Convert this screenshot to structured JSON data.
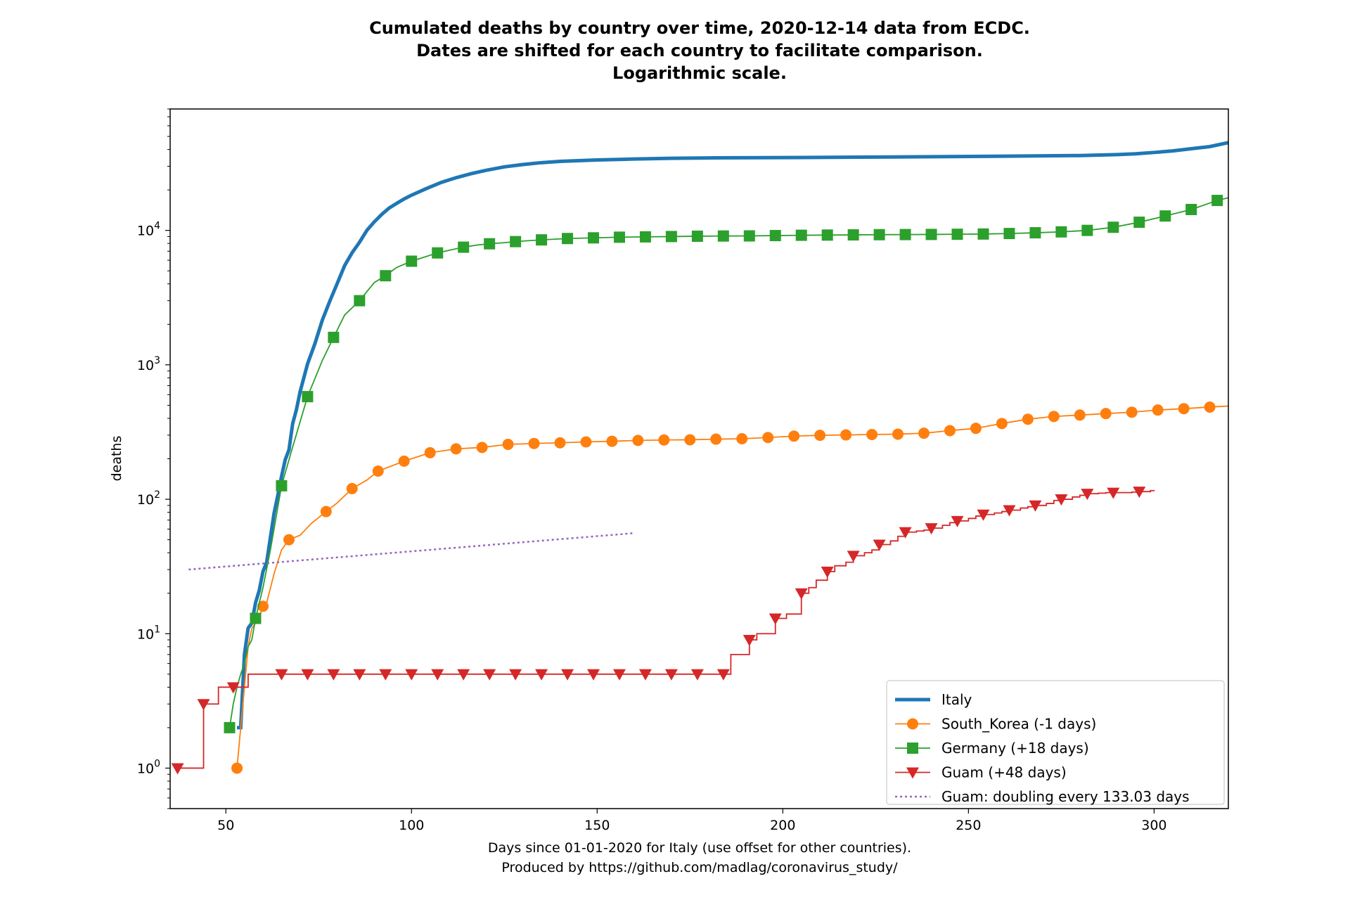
{
  "chart_data": {
    "type": "line",
    "title": [
      "Cumulated deaths by country over time, 2020-12-14 data from ECDC.",
      "Dates are shifted for each country to facilitate comparison.",
      "Logarithmic scale."
    ],
    "xlabel": [
      "Days since 01-01-2020 for Italy (use offset for other countries).",
      "Produced by https://github.com/madlag/coronavirus_study/"
    ],
    "ylabel": "deaths",
    "y_scale": "log",
    "xlim": [
      35,
      320
    ],
    "ylim": [
      0.5,
      80000
    ],
    "x_ticks": [
      50,
      100,
      150,
      200,
      250,
      300
    ],
    "y_ticks": [
      1,
      10,
      100,
      1000,
      10000
    ],
    "y_tick_labels": [
      {
        "base": "10",
        "exp": "0"
      },
      {
        "base": "10",
        "exp": "1"
      },
      {
        "base": "10",
        "exp": "2"
      },
      {
        "base": "10",
        "exp": "3"
      },
      {
        "base": "10",
        "exp": "4"
      }
    ],
    "legend_position": "lower-right",
    "series": [
      {
        "name": "Italy",
        "color": "#1f77b4",
        "marker": "none",
        "style": "solid-thick",
        "x": [
          53,
          54,
          55,
          56,
          57,
          58,
          59,
          60,
          61,
          62,
          63,
          64,
          65,
          66,
          67,
          68,
          69,
          70,
          72,
          74,
          76,
          78,
          80,
          82,
          84,
          86,
          88,
          90,
          92,
          94,
          96,
          98,
          100,
          104,
          108,
          112,
          116,
          120,
          125,
          130,
          135,
          140,
          150,
          160,
          170,
          180,
          200,
          220,
          240,
          260,
          280,
          290,
          295,
          300,
          305,
          310,
          315,
          320
        ],
        "y": [
          2,
          2,
          7,
          11,
          12,
          17,
          21,
          29,
          34,
          52,
          79,
          107,
          148,
          197,
          233,
          366,
          463,
          631,
          1016,
          1441,
          2158,
          2978,
          4032,
          5476,
          6820,
          8165,
          10023,
          11591,
          13155,
          14681,
          15887,
          17127,
          18279,
          20465,
          22745,
          24648,
          26384,
          27967,
          29684,
          30911,
          31908,
          32616,
          33415,
          33964,
          34405,
          34610,
          34788,
          35042,
          35318,
          35633,
          36050,
          36600,
          37100,
          38000,
          39000,
          40500,
          42000,
          45000
        ]
      },
      {
        "name": "South_Korea (-1 days)",
        "color": "#ff7f0e",
        "marker": "circle",
        "style": "solid",
        "x": [
          53,
          54,
          55,
          56,
          57,
          58,
          59,
          60,
          61,
          63,
          65,
          67,
          70,
          73,
          77,
          80,
          84,
          88,
          91,
          98,
          105,
          112,
          119,
          126,
          133,
          140,
          147,
          154,
          161,
          168,
          175,
          182,
          189,
          196,
          203,
          210,
          217,
          224,
          231,
          238,
          245,
          252,
          259,
          266,
          273,
          280,
          287,
          294,
          301,
          308,
          315,
          320
        ],
        "y": [
          1,
          2,
          4,
          8,
          11,
          12,
          13,
          16,
          17,
          28,
          42,
          50,
          54,
          66,
          81,
          94,
          120,
          139,
          162,
          192,
          222,
          237,
          243,
          256,
          260,
          263,
          267,
          270,
          274,
          276,
          277,
          280,
          282,
          288,
          295,
          299,
          301,
          303,
          305,
          310,
          324,
          337,
          366,
          394,
          413,
          423,
          434,
          444,
          461,
          472,
          485,
          494
        ]
      },
      {
        "name": "Germany (+18 days)",
        "color": "#2ca02c",
        "marker": "square",
        "style": "solid",
        "x": [
          51,
          52,
          53,
          54,
          55,
          56,
          57,
          58,
          60,
          62,
          65,
          68,
          72,
          76,
          79,
          82,
          86,
          90,
          93,
          96,
          100,
          104,
          107,
          110,
          114,
          118,
          121,
          125,
          128,
          132,
          135,
          142,
          149,
          156,
          163,
          170,
          177,
          184,
          191,
          198,
          205,
          212,
          219,
          226,
          233,
          240,
          247,
          254,
          261,
          268,
          275,
          282,
          289,
          296,
          303,
          310,
          317,
          320
        ],
        "y": [
          2,
          3,
          4,
          5,
          6,
          8,
          9,
          13,
          22,
          42,
          126,
          245,
          580,
          1080,
          1600,
          2350,
          3000,
          4100,
          4600,
          5300,
          5900,
          6400,
          6800,
          7100,
          7500,
          7800,
          7950,
          8100,
          8250,
          8400,
          8500,
          8700,
          8800,
          8900,
          8950,
          9000,
          9050,
          9080,
          9100,
          9150,
          9200,
          9230,
          9260,
          9290,
          9310,
          9330,
          9360,
          9400,
          9480,
          9600,
          9750,
          10000,
          10550,
          11500,
          12800,
          14300,
          16700,
          17500
        ]
      },
      {
        "name": "Guam (+48 days)",
        "color": "#d62728",
        "marker": "triangle-down",
        "style": "steps",
        "x": [
          37,
          38,
          40,
          42,
          43,
          44,
          46,
          48,
          50,
          52,
          54,
          56,
          58,
          65,
          72,
          79,
          86,
          93,
          100,
          107,
          114,
          121,
          128,
          135,
          142,
          149,
          156,
          163,
          170,
          177,
          184,
          186,
          188,
          191,
          193,
          196,
          198,
          201,
          203,
          205,
          207,
          209,
          212,
          214,
          217,
          219,
          222,
          224,
          226,
          229,
          231,
          233,
          236,
          238,
          240,
          243,
          245,
          247,
          250,
          252,
          254,
          257,
          259,
          261,
          264,
          266,
          268,
          271,
          273,
          275,
          278,
          280,
          282,
          285,
          287,
          289,
          292,
          294,
          296,
          299,
          300
        ],
        "y": [
          1,
          1,
          1,
          1,
          1,
          3,
          3,
          4,
          4,
          4,
          4,
          5,
          5,
          5,
          5,
          5,
          5,
          5,
          5,
          5,
          5,
          5,
          5,
          5,
          5,
          5,
          5,
          5,
          5,
          5,
          5,
          7,
          7,
          9,
          10,
          10,
          13,
          14,
          14,
          20,
          22,
          25,
          29,
          32,
          34,
          38,
          40,
          42,
          46,
          49,
          53,
          57,
          58,
          59,
          61,
          64,
          67,
          69,
          72,
          75,
          77,
          79,
          81,
          83,
          86,
          88,
          90,
          93,
          98,
          100,
          104,
          107,
          110,
          111,
          112,
          112,
          112,
          113,
          114,
          116,
          117
        ]
      },
      {
        "name": "Guam: doubling every 133.03 days",
        "color": "#9467bd",
        "marker": "none",
        "style": "dotted",
        "x": [
          40,
          160
        ],
        "y": [
          30,
          56
        ]
      }
    ],
    "marker_spacing": {
      "South_Korea (-1 days)": 7,
      "Germany (+18 days)": 7,
      "Guam (+48 days)": 7
    }
  }
}
